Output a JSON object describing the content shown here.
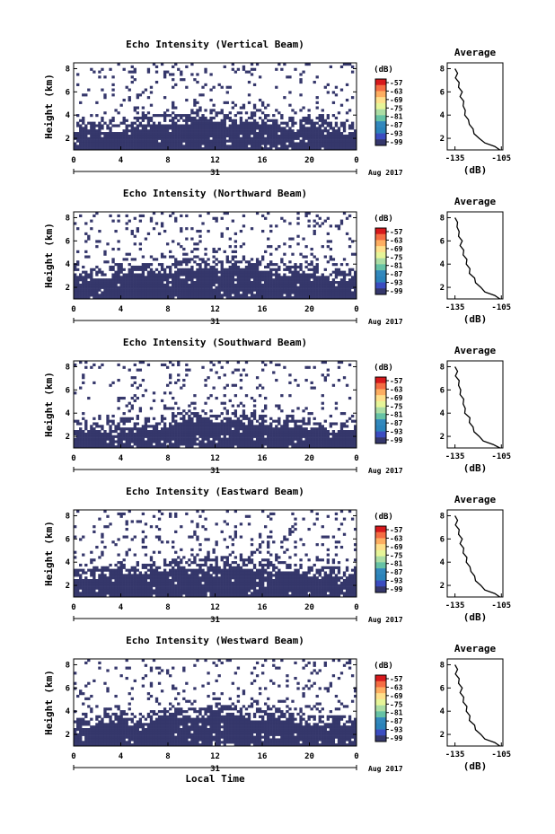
{
  "chart_data": [
    {
      "type": "heatmap",
      "title": "Echo Intensity (Vertical Beam)",
      "ylabel": "Height (km)",
      "x_ticks": [
        "0",
        "4",
        "8",
        "12",
        "16",
        "20",
        "0"
      ],
      "y_ticks": [
        "2",
        "4",
        "6",
        "8"
      ],
      "date_label": "31",
      "month_label": "Aug 2017",
      "xlim": [
        0,
        24
      ],
      "ylim": [
        1,
        8.5
      ],
      "fill_top_km": 3.4,
      "colorbar": {
        "unit": "(dB)",
        "labels": [
          "-57",
          "-63",
          "-69",
          "-75",
          "-81",
          "-87",
          "-93",
          "-99"
        ]
      },
      "average": {
        "title": "Average",
        "xlabel": "(dB)",
        "x_ticks": [
          "-135",
          "-105"
        ],
        "y_ticks": [
          "2",
          "4",
          "6",
          "8"
        ],
        "height_km": [
          1.0,
          1.3,
          1.6,
          2.0,
          2.4,
          2.8,
          3.2,
          3.6,
          4.0,
          4.4,
          4.8,
          5.2,
          5.6,
          6.0,
          6.4,
          6.8,
          7.2,
          7.6,
          8.0
        ],
        "db": [
          -106,
          -110,
          -115,
          -120,
          -122,
          -124,
          -125,
          -127,
          -128,
          -129,
          -129,
          -130,
          -131,
          -131,
          -132,
          -133,
          -134,
          -134,
          -135
        ]
      }
    },
    {
      "type": "heatmap",
      "title": "Echo Intensity (Northward Beam)",
      "ylabel": "Height (km)",
      "x_ticks": [
        "0",
        "4",
        "8",
        "12",
        "16",
        "20",
        "0"
      ],
      "y_ticks": [
        "2",
        "4",
        "6",
        "8"
      ],
      "date_label": "31",
      "month_label": "Aug 2017",
      "xlim": [
        0,
        24
      ],
      "ylim": [
        1,
        8.5
      ],
      "fill_top_km": 3.6,
      "colorbar": {
        "unit": "(dB)",
        "labels": [
          "-57",
          "-63",
          "-69",
          "-75",
          "-81",
          "-87",
          "-93",
          "-99"
        ]
      },
      "average": {
        "title": "Average",
        "xlabel": "(dB)",
        "x_ticks": [
          "-135",
          "-105"
        ],
        "y_ticks": [
          "2",
          "4",
          "6",
          "8"
        ],
        "height_km": [
          1.0,
          1.3,
          1.6,
          2.0,
          2.4,
          2.8,
          3.2,
          3.6,
          4.0,
          4.4,
          4.8,
          5.2,
          5.6,
          6.0,
          6.4,
          6.8,
          7.2,
          7.6,
          8.0
        ],
        "db": [
          -106,
          -110,
          -115,
          -119,
          -121,
          -123,
          -125,
          -126,
          -127,
          -128,
          -129,
          -130,
          -131,
          -131,
          -132,
          -133,
          -133,
          -134,
          -135
        ]
      }
    },
    {
      "type": "heatmap",
      "title": "Echo Intensity (Southward Beam)",
      "ylabel": "Height (km)",
      "x_ticks": [
        "0",
        "4",
        "8",
        "12",
        "16",
        "20",
        "0"
      ],
      "y_ticks": [
        "2",
        "4",
        "6",
        "8"
      ],
      "date_label": "31",
      "month_label": "Aug 2017",
      "xlim": [
        0,
        24
      ],
      "ylim": [
        1,
        8.5
      ],
      "fill_top_km": 3.2,
      "colorbar": {
        "unit": "(dB)",
        "labels": [
          "-57",
          "-63",
          "-69",
          "-75",
          "-81",
          "-87",
          "-93",
          "-99"
        ]
      },
      "average": {
        "title": "Average",
        "xlabel": "(dB)",
        "x_ticks": [
          "-135",
          "-105"
        ],
        "y_ticks": [
          "2",
          "4",
          "6",
          "8"
        ],
        "height_km": [
          1.0,
          1.3,
          1.6,
          2.0,
          2.4,
          2.8,
          3.2,
          3.6,
          4.0,
          4.4,
          4.8,
          5.2,
          5.6,
          6.0,
          6.4,
          6.8,
          7.2,
          7.6,
          8.0
        ],
        "db": [
          -106,
          -111,
          -116,
          -120,
          -122,
          -124,
          -125,
          -126,
          -128,
          -129,
          -129,
          -130,
          -131,
          -132,
          -132,
          -133,
          -134,
          -134,
          -135
        ]
      }
    },
    {
      "type": "heatmap",
      "title": "Echo Intensity (Eastward Beam)",
      "ylabel": "Height (km)",
      "x_ticks": [
        "0",
        "4",
        "8",
        "12",
        "16",
        "20",
        "0"
      ],
      "y_ticks": [
        "2",
        "4",
        "6",
        "8"
      ],
      "date_label": "31",
      "month_label": "Aug 2017",
      "xlim": [
        0,
        24
      ],
      "ylim": [
        1,
        8.5
      ],
      "fill_top_km": 3.5,
      "colorbar": {
        "unit": "(dB)",
        "labels": [
          "-57",
          "-63",
          "-69",
          "-75",
          "-81",
          "-87",
          "-93",
          "-99"
        ]
      },
      "average": {
        "title": "Average",
        "xlabel": "(dB)",
        "x_ticks": [
          "-135",
          "-105"
        ],
        "y_ticks": [
          "2",
          "4",
          "6",
          "8"
        ],
        "height_km": [
          1.0,
          1.3,
          1.6,
          2.0,
          2.4,
          2.8,
          3.2,
          3.6,
          4.0,
          4.4,
          4.8,
          5.2,
          5.6,
          6.0,
          6.4,
          6.8,
          7.2,
          7.6,
          8.0
        ],
        "db": [
          -106,
          -110,
          -115,
          -119,
          -121,
          -123,
          -124,
          -126,
          -127,
          -128,
          -129,
          -130,
          -131,
          -131,
          -132,
          -133,
          -134,
          -134,
          -135
        ]
      }
    },
    {
      "type": "heatmap",
      "title": "Echo Intensity (Westward Beam)",
      "ylabel": "Height (km)",
      "x_ticks": [
        "0",
        "4",
        "8",
        "12",
        "16",
        "20",
        "0"
      ],
      "y_ticks": [
        "2",
        "4",
        "6",
        "8"
      ],
      "date_label": "31",
      "month_label": "Aug 2017",
      "xlabel": "Local Time",
      "xlim": [
        0,
        24
      ],
      "ylim": [
        1,
        8.5
      ],
      "fill_top_km": 3.5,
      "colorbar": {
        "unit": "(dB)",
        "labels": [
          "-57",
          "-63",
          "-69",
          "-75",
          "-81",
          "-87",
          "-93",
          "-99"
        ]
      },
      "average": {
        "title": "Average",
        "xlabel": "(dB)",
        "x_ticks": [
          "-135",
          "-105"
        ],
        "y_ticks": [
          "2",
          "4",
          "6",
          "8"
        ],
        "height_km": [
          1.0,
          1.3,
          1.6,
          2.0,
          2.4,
          2.8,
          3.2,
          3.6,
          4.0,
          4.4,
          4.8,
          5.2,
          5.6,
          6.0,
          6.4,
          6.8,
          7.2,
          7.6,
          8.0
        ],
        "db": [
          -106,
          -110,
          -115,
          -119,
          -121,
          -123,
          -125,
          -126,
          -127,
          -128,
          -129,
          -130,
          -131,
          -131,
          -132,
          -133,
          -134,
          -134,
          -135
        ]
      }
    }
  ],
  "colors": {
    "fill": "#35376b",
    "colorbar": [
      "#d7191c",
      "#f46d43",
      "#fdae61",
      "#fee08b",
      "#e6f598",
      "#abdda4",
      "#66c2a5",
      "#3288bd",
      "#2b83ba",
      "#3b4cc0",
      "#35376b"
    ]
  }
}
